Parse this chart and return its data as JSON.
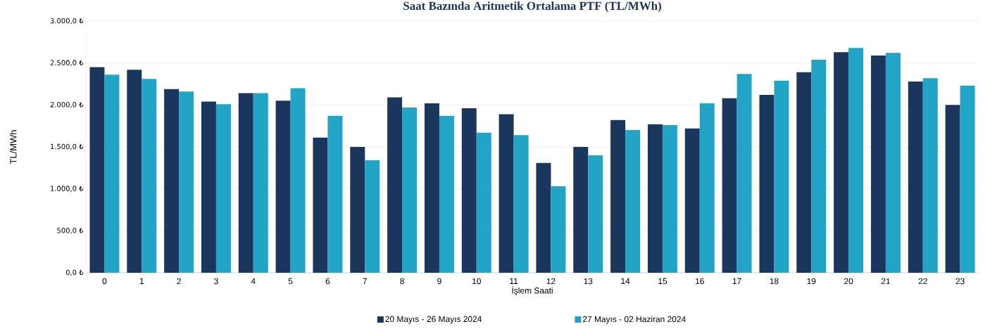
{
  "chart_data": {
    "type": "bar",
    "title": "Saat Bazında Aritmetik Ortalama PTF (TL/MWh)",
    "xlabel": "İşlem Saati",
    "ylabel": "TL/MWh",
    "categories": [
      "0",
      "1",
      "2",
      "3",
      "4",
      "5",
      "6",
      "7",
      "8",
      "9",
      "10",
      "11",
      "12",
      "13",
      "14",
      "15",
      "16",
      "17",
      "18",
      "19",
      "20",
      "21",
      "22",
      "23"
    ],
    "series": [
      {
        "name": "20 Mayıs - 26 Mayıs 2024",
        "color": "#1b365d",
        "values": [
          2450,
          2420,
          2190,
          2040,
          2140,
          2050,
          1610,
          1500,
          2090,
          2020,
          1960,
          1890,
          1310,
          1500,
          1820,
          1770,
          1720,
          2080,
          2120,
          2390,
          2630,
          2590,
          2280,
          2000
        ]
      },
      {
        "name": "27 Mayıs - 02 Haziran 2024",
        "color": "#22a4c6",
        "values": [
          2360,
          2310,
          2160,
          2010,
          2140,
          2200,
          1870,
          1340,
          1970,
          1870,
          1670,
          1640,
          1030,
          1400,
          1700,
          1760,
          2020,
          2370,
          2290,
          2540,
          2680,
          2620,
          2320,
          2230
        ]
      }
    ],
    "ylim": [
      0,
      3000
    ],
    "yticks": [
      {
        "value": 0,
        "label": "0,0 ₺"
      },
      {
        "value": 500,
        "label": "500,0 ₺"
      },
      {
        "value": 1000,
        "label": "1.000,0 ₺"
      },
      {
        "value": 1500,
        "label": "1.500,0 ₺"
      },
      {
        "value": 2000,
        "label": "2.000,0 ₺"
      },
      {
        "value": 2500,
        "label": "2.500,0 ₺"
      },
      {
        "value": 3000,
        "label": "3.000,0 ₺"
      }
    ],
    "grid": "y",
    "legend": "bottom"
  }
}
